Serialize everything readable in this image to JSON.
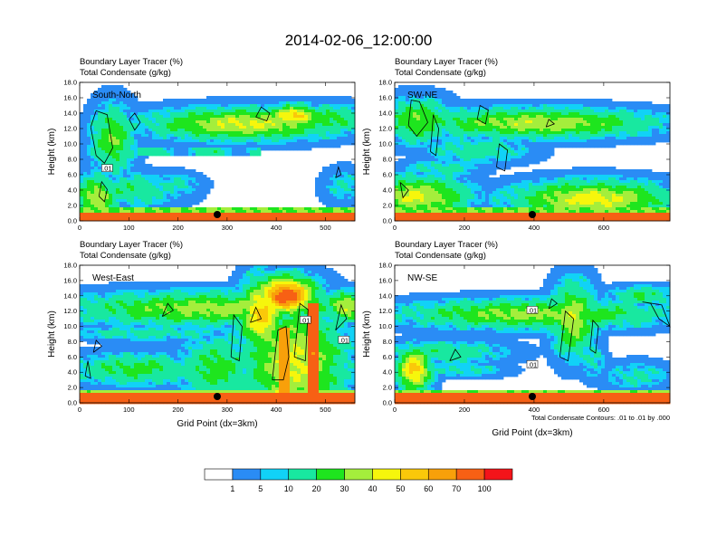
{
  "title": "2014-02-06_12:00:00",
  "colors": {
    "palette": [
      "#ffffff",
      "#2a8cf5",
      "#11d2f7",
      "#18e8a0",
      "#1ee51e",
      "#a4ee3c",
      "#f6f60c",
      "#fac80a",
      "#f8a00a",
      "#f76014",
      "#f4141a"
    ],
    "contour": "#000000",
    "marker": "#000000"
  },
  "colorbar": {
    "labels": [
      "1",
      "5",
      "10",
      "20",
      "30",
      "40",
      "50",
      "60",
      "70",
      "100"
    ]
  },
  "panels": [
    {
      "label": "South-North",
      "subtitle1": "Boundary Layer Tracer   (%)",
      "subtitle2": "Total Condensate   (g/kg)",
      "ylabel": "Height (km)",
      "xlabel": "",
      "xmax": 560,
      "xticks": [
        "0",
        "100",
        "200",
        "300",
        "400",
        "500"
      ],
      "xtick_values": [
        0,
        100,
        200,
        300,
        400,
        500
      ],
      "yticks": [
        "0.0",
        "2.0",
        "4.0",
        "6.0",
        "8.0",
        "10.0",
        "12.0",
        "14.0",
        "16.0",
        "18.0"
      ],
      "marker_x": 280,
      "contour_labels": [
        ".01"
      ],
      "note": ""
    },
    {
      "label": "SW-NE",
      "subtitle1": "Boundary Layer Tracer   (%)",
      "subtitle2": "Total Condensate   (g/kg)",
      "ylabel": "Height (km)",
      "xlabel": "",
      "xmax": 790,
      "xticks": [
        "0",
        "200",
        "400",
        "600"
      ],
      "xtick_values": [
        0,
        200,
        400,
        600
      ],
      "yticks": [
        "0.0",
        "2.0",
        "4.0",
        "6.0",
        "8.0",
        "10.0",
        "12.0",
        "14.0",
        "16.0",
        "18.0"
      ],
      "marker_x": 395,
      "contour_labels": [],
      "note": ""
    },
    {
      "label": "West-East",
      "subtitle1": "Boundary Layer Tracer   (%)",
      "subtitle2": "Total Condensate   (g/kg)",
      "ylabel": "Height (km)",
      "xlabel": "Grid Point (dx=3km)",
      "xmax": 560,
      "xticks": [
        "0",
        "100",
        "200",
        "300",
        "400",
        "500"
      ],
      "xtick_values": [
        0,
        100,
        200,
        300,
        400,
        500
      ],
      "yticks": [
        "0.0",
        "2.0",
        "4.0",
        "6.0",
        "8.0",
        "10.0",
        "12.0",
        "14.0",
        "16.0",
        "18.0"
      ],
      "marker_x": 280,
      "contour_labels": [
        ".01",
        ".01"
      ],
      "note": ""
    },
    {
      "label": "NW-SE",
      "subtitle1": "Boundary Layer Tracer   (%)",
      "subtitle2": "Total Condensate   (g/kg)",
      "ylabel": "Height (km)",
      "xlabel": "Grid Point (dx=3km)",
      "xmax": 790,
      "xticks": [
        "0",
        "200",
        "400",
        "600"
      ],
      "xtick_values": [
        0,
        200,
        400,
        600
      ],
      "yticks": [
        "0.0",
        "2.0",
        "4.0",
        "6.0",
        "8.0",
        "10.0",
        "12.0",
        "14.0",
        "16.0",
        "18.0"
      ],
      "marker_x": 395,
      "contour_labels": [
        ".01",
        ".01"
      ],
      "note": "Total Condensate Contours: .01 to .01 by .000"
    }
  ],
  "chart_data": [
    {
      "type": "heatmap",
      "title": "2014-02-06_12:00:00",
      "panel": "South-North",
      "fill_variable": "Boundary Layer Tracer (%)",
      "contour_variable": "Total Condensate (g/kg)",
      "ylabel": "Height (km)",
      "xlim": [
        0,
        560
      ],
      "ylim": [
        0,
        18
      ],
      "fill_levels": [
        1,
        5,
        10,
        20,
        30,
        40,
        50,
        60,
        70,
        100
      ],
      "contour_levels": [
        0.01
      ]
    },
    {
      "type": "heatmap",
      "panel": "SW-NE",
      "fill_variable": "Boundary Layer Tracer (%)",
      "contour_variable": "Total Condensate (g/kg)",
      "ylabel": "Height (km)",
      "xlim": [
        0,
        790
      ],
      "ylim": [
        0,
        18
      ],
      "fill_levels": [
        1,
        5,
        10,
        20,
        30,
        40,
        50,
        60,
        70,
        100
      ],
      "contour_levels": [
        0.01
      ]
    },
    {
      "type": "heatmap",
      "panel": "West-East",
      "fill_variable": "Boundary Layer Tracer (%)",
      "contour_variable": "Total Condensate (g/kg)",
      "xlabel": "Grid Point (dx=3km)",
      "ylabel": "Height (km)",
      "xlim": [
        0,
        560
      ],
      "ylim": [
        0,
        18
      ],
      "fill_levels": [
        1,
        5,
        10,
        20,
        30,
        40,
        50,
        60,
        70,
        100
      ],
      "contour_levels": [
        0.01
      ]
    },
    {
      "type": "heatmap",
      "panel": "NW-SE",
      "fill_variable": "Boundary Layer Tracer (%)",
      "contour_variable": "Total Condensate (g/kg)",
      "xlabel": "Grid Point (dx=3km)",
      "ylabel": "Height (km)",
      "xlim": [
        0,
        790
      ],
      "ylim": [
        0,
        18
      ],
      "fill_levels": [
        1,
        5,
        10,
        20,
        30,
        40,
        50,
        60,
        70,
        100
      ],
      "contour_levels": [
        0.01
      ]
    }
  ]
}
